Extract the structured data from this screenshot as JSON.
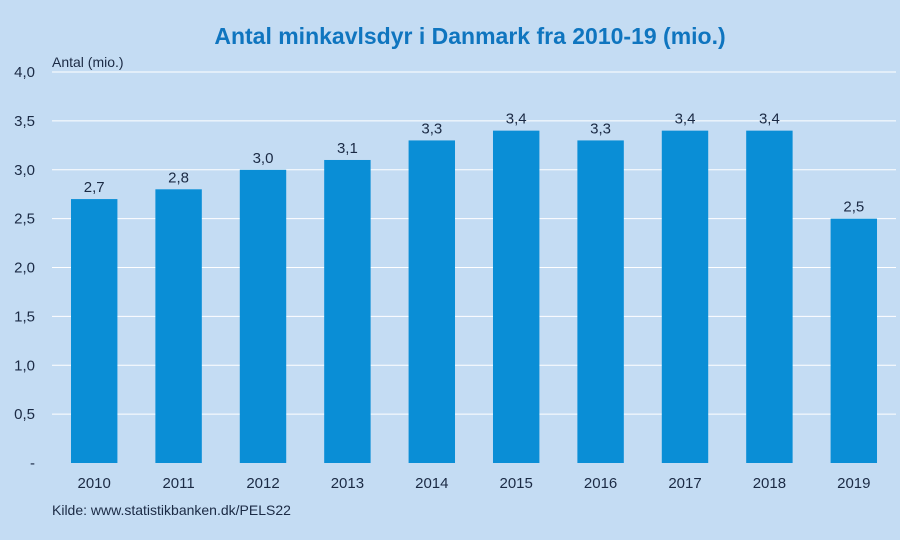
{
  "chart_data": {
    "type": "bar",
    "title": "Antal minkavlsdyr i Danmark fra 2010-19 (mio.)",
    "ylabel": "Antal (mio.)",
    "xlabel": "",
    "categories": [
      "2010",
      "2011",
      "2012",
      "2013",
      "2014",
      "2015",
      "2016",
      "2017",
      "2018",
      "2019"
    ],
    "values": [
      2.7,
      2.8,
      3.0,
      3.1,
      3.3,
      3.4,
      3.3,
      3.4,
      3.4,
      2.5
    ],
    "data_labels": [
      "2,7",
      "2,8",
      "3,0",
      "3,1",
      "3,3",
      "3,4",
      "3,3",
      "3,4",
      "3,4",
      "2,5"
    ],
    "ylim": [
      0,
      4
    ],
    "yticks": [
      0,
      0.5,
      1.0,
      1.5,
      2.0,
      2.5,
      3.0,
      3.5,
      4.0
    ],
    "ytick_labels": [
      "-",
      "0,5",
      "1,0",
      "1,5",
      "2,0",
      "2,5",
      "3,0",
      "3,5",
      "4,0"
    ],
    "grid": true,
    "legend": "none",
    "source": "Kilde: www.statistikbanken.dk/PELS22",
    "colors": {
      "background": "#c4dcf3",
      "bar": "#0a8ed6",
      "title": "#0f75bf",
      "gridline": "#ffffff",
      "text": "#1b2a44"
    }
  }
}
